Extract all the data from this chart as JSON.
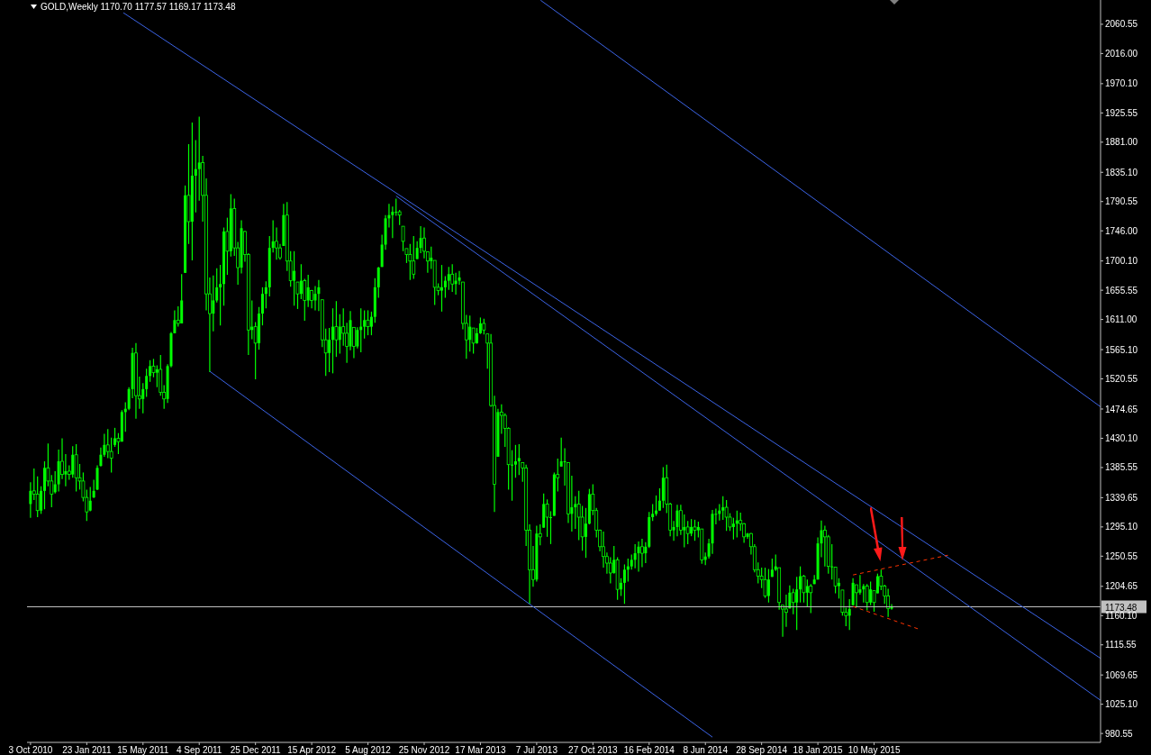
{
  "chart_data": {
    "type": "candlestick",
    "title": "GOLD,Weekly 1170.70 1177.57 1169.17 1173.48",
    "color": "#00ff00",
    "x": [
      "2010-10-03",
      "2010-10-10",
      "2010-10-17",
      "2010-10-24",
      "2010-10-31",
      "2010-11-07",
      "2010-11-14",
      "2010-11-21",
      "2010-11-28",
      "2010-12-05",
      "2010-12-12",
      "2010-12-19",
      "2010-12-26",
      "2011-01-02",
      "2011-01-09",
      "2011-01-16",
      "2011-01-23",
      "2011-01-30",
      "2011-02-06",
      "2011-02-13",
      "2011-02-20",
      "2011-02-27",
      "2011-03-06",
      "2011-03-13",
      "2011-03-20",
      "2011-03-27",
      "2011-04-03",
      "2011-04-10",
      "2011-04-17",
      "2011-04-24",
      "2011-05-01",
      "2011-05-08",
      "2011-05-15",
      "2011-05-22",
      "2011-05-29",
      "2011-06-05",
      "2011-06-12",
      "2011-06-19",
      "2011-06-26",
      "2011-07-03",
      "2011-07-10",
      "2011-07-17",
      "2011-07-24",
      "2011-07-31",
      "2011-08-07",
      "2011-08-14",
      "2011-08-21",
      "2011-08-28",
      "2011-09-04",
      "2011-09-11",
      "2011-09-18",
      "2011-09-25",
      "2011-10-02",
      "2011-10-09",
      "2011-10-16",
      "2011-10-23",
      "2011-10-30",
      "2011-11-06",
      "2011-11-13",
      "2011-11-20",
      "2011-11-27",
      "2011-12-04",
      "2011-12-11",
      "2011-12-18",
      "2011-12-25",
      "2012-01-01",
      "2012-01-08",
      "2012-01-15",
      "2012-01-22",
      "2012-01-29",
      "2012-02-05",
      "2012-02-12",
      "2012-02-19",
      "2012-02-26",
      "2012-03-04",
      "2012-03-11",
      "2012-03-18",
      "2012-03-25",
      "2012-04-01",
      "2012-04-08",
      "2012-04-15",
      "2012-04-22",
      "2012-04-29",
      "2012-05-06",
      "2012-05-13",
      "2012-05-20",
      "2012-05-27",
      "2012-06-03",
      "2012-06-10",
      "2012-06-17",
      "2012-06-24",
      "2012-07-01",
      "2012-07-08",
      "2012-07-15",
      "2012-07-22",
      "2012-07-29",
      "2012-08-05",
      "2012-08-12",
      "2012-08-19",
      "2012-08-26",
      "2012-09-02",
      "2012-09-09",
      "2012-09-16",
      "2012-09-23",
      "2012-09-30",
      "2012-10-07",
      "2012-10-14",
      "2012-10-21",
      "2012-10-28",
      "2012-11-04",
      "2012-11-11",
      "2012-11-18",
      "2012-11-25",
      "2012-12-02",
      "2012-12-09",
      "2012-12-16",
      "2012-12-23",
      "2012-12-30",
      "2013-01-06",
      "2013-01-13",
      "2013-01-20",
      "2013-01-27",
      "2013-02-03",
      "2013-02-10",
      "2013-02-17",
      "2013-02-24",
      "2013-03-03",
      "2013-03-10",
      "2013-03-17",
      "2013-03-24",
      "2013-03-31",
      "2013-04-07",
      "2013-04-14",
      "2013-04-21",
      "2013-04-28",
      "2013-05-05",
      "2013-05-12",
      "2013-05-19",
      "2013-05-26",
      "2013-06-02",
      "2013-06-09",
      "2013-06-16",
      "2013-06-23",
      "2013-06-30",
      "2013-07-07",
      "2013-07-14",
      "2013-07-21",
      "2013-07-28",
      "2013-08-04",
      "2013-08-11",
      "2013-08-18",
      "2013-08-25",
      "2013-09-01",
      "2013-09-08",
      "2013-09-15",
      "2013-09-22",
      "2013-09-29",
      "2013-10-06",
      "2013-10-13",
      "2013-10-20",
      "2013-10-27",
      "2013-11-03",
      "2013-11-10",
      "2013-11-17",
      "2013-11-24",
      "2013-12-01",
      "2013-12-08",
      "2013-12-15",
      "2013-12-22",
      "2013-12-29",
      "2014-01-05",
      "2014-01-12",
      "2014-01-19",
      "2014-01-26",
      "2014-02-02",
      "2014-02-09",
      "2014-02-16",
      "2014-02-23",
      "2014-03-02",
      "2014-03-09",
      "2014-03-16",
      "2014-03-23",
      "2014-03-30",
      "2014-04-06",
      "2014-04-13",
      "2014-04-20",
      "2014-04-27",
      "2014-05-04",
      "2014-05-11",
      "2014-05-18",
      "2014-05-25",
      "2014-06-01",
      "2014-06-08",
      "2014-06-15",
      "2014-06-22",
      "2014-06-29",
      "2014-07-06",
      "2014-07-13",
      "2014-07-20",
      "2014-07-27",
      "2014-08-03",
      "2014-08-10",
      "2014-08-17",
      "2014-08-24",
      "2014-08-31",
      "2014-09-07",
      "2014-09-14",
      "2014-09-21",
      "2014-09-28",
      "2014-10-05",
      "2014-10-12",
      "2014-10-19",
      "2014-10-26",
      "2014-11-02",
      "2014-11-09",
      "2014-11-16",
      "2014-11-23",
      "2014-11-30",
      "2014-12-07",
      "2014-12-14",
      "2014-12-21",
      "2014-12-28",
      "2015-01-04",
      "2015-01-11",
      "2015-01-18",
      "2015-01-25",
      "2015-02-01",
      "2015-02-08",
      "2015-02-15",
      "2015-02-22",
      "2015-03-01",
      "2015-03-08",
      "2015-03-15",
      "2015-03-22",
      "2015-03-29",
      "2015-04-05",
      "2015-04-12",
      "2015-04-19",
      "2015-04-26",
      "2015-05-03",
      "2015-05-10",
      "2015-05-17",
      "2015-05-24",
      "2015-05-31",
      "2015-06-07",
      "2015-06-14"
    ],
    "ohlc": [
      [
        1330,
        1363,
        1309,
        1350
      ],
      [
        1350,
        1384,
        1336,
        1345
      ],
      [
        1345,
        1372,
        1310,
        1320
      ],
      [
        1320,
        1357,
        1315,
        1350
      ],
      [
        1350,
        1395,
        1322,
        1385
      ],
      [
        1385,
        1422,
        1357,
        1365
      ],
      [
        1365,
        1374,
        1325,
        1345
      ],
      [
        1348,
        1380,
        1346,
        1360
      ],
      [
        1360,
        1413,
        1349,
        1395
      ],
      [
        1395,
        1430,
        1368,
        1375
      ],
      [
        1375,
        1406,
        1357,
        1380
      ],
      [
        1380,
        1389,
        1367,
        1375
      ],
      [
        1375,
        1418,
        1370,
        1405
      ],
      [
        1405,
        1421,
        1349,
        1370
      ],
      [
        1370,
        1391,
        1352,
        1365
      ],
      [
        1365,
        1378,
        1334,
        1340
      ],
      [
        1340,
        1352,
        1304,
        1318
      ],
      [
        1320,
        1356,
        1319,
        1335
      ],
      [
        1340,
        1367,
        1339,
        1350
      ],
      [
        1352,
        1389,
        1351,
        1385
      ],
      [
        1388,
        1416,
        1387,
        1405
      ],
      [
        1405,
        1437,
        1402,
        1420
      ],
      [
        1420,
        1444,
        1400,
        1410
      ],
      [
        1410,
        1431,
        1378,
        1400
      ],
      [
        1420,
        1446,
        1417,
        1430
      ],
      [
        1430,
        1438,
        1406,
        1425
      ],
      [
        1425,
        1473,
        1425,
        1470
      ],
      [
        1470,
        1485,
        1440,
        1475
      ],
      [
        1475,
        1508,
        1473,
        1505
      ],
      [
        1505,
        1568,
        1491,
        1560
      ],
      [
        1560,
        1575,
        1460,
        1495
      ],
      [
        1495,
        1524,
        1475,
        1490
      ],
      [
        1490,
        1514,
        1468,
        1505
      ],
      [
        1505,
        1536,
        1493,
        1525
      ],
      [
        1525,
        1549,
        1516,
        1540
      ],
      [
        1540,
        1551,
        1523,
        1530
      ],
      [
        1530,
        1541,
        1508,
        1535
      ],
      [
        1535,
        1557,
        1495,
        1500
      ],
      [
        1500,
        1511,
        1475,
        1490
      ],
      [
        1490,
        1543,
        1484,
        1540
      ],
      [
        1540,
        1592,
        1538,
        1590
      ],
      [
        1590,
        1625,
        1590,
        1610
      ],
      [
        1610,
        1631,
        1600,
        1605
      ],
      [
        1605,
        1680,
        1605,
        1640
      ],
      [
        1682,
        1815,
        1682,
        1800
      ],
      [
        1800,
        1878,
        1726,
        1760
      ],
      [
        1760,
        1911,
        1701,
        1830
      ],
      [
        1830,
        1884,
        1774,
        1840
      ],
      [
        1840,
        1920,
        1792,
        1850
      ],
      [
        1850,
        1860,
        1760,
        1800
      ],
      [
        1800,
        1826,
        1625,
        1650
      ],
      [
        1650,
        1675,
        1531,
        1620
      ],
      [
        1620,
        1678,
        1593,
        1640
      ],
      [
        1640,
        1689,
        1637,
        1660
      ],
      [
        1660,
        1694,
        1602,
        1665
      ],
      [
        1665,
        1751,
        1632,
        1745
      ],
      [
        1745,
        1766,
        1679,
        1715
      ],
      [
        1715,
        1802,
        1707,
        1780
      ],
      [
        1780,
        1795,
        1708,
        1720
      ],
      [
        1720,
        1729,
        1664,
        1690
      ],
      [
        1690,
        1762,
        1681,
        1750
      ],
      [
        1745,
        1746,
        1699,
        1710
      ],
      [
        1710,
        1712,
        1557,
        1595
      ],
      [
        1595,
        1640,
        1581,
        1600
      ],
      [
        1600,
        1607,
        1520,
        1575
      ],
      [
        1575,
        1630,
        1565,
        1620
      ],
      [
        1620,
        1660,
        1602,
        1650
      ],
      [
        1650,
        1669,
        1628,
        1660
      ],
      [
        1660,
        1738,
        1646,
        1720
      ],
      [
        1720,
        1762,
        1713,
        1730
      ],
      [
        1730,
        1751,
        1702,
        1720
      ],
      [
        1720,
        1726,
        1702,
        1705
      ],
      [
        1723,
        1787,
        1723,
        1770
      ],
      [
        1770,
        1790,
        1685,
        1700
      ],
      [
        1700,
        1715,
        1661,
        1670
      ],
      [
        1670,
        1715,
        1632,
        1685
      ],
      [
        1668,
        1668,
        1627,
        1650
      ],
      [
        1650,
        1695,
        1642,
        1670
      ],
      [
        1670,
        1673,
        1609,
        1640
      ],
      [
        1640,
        1679,
        1630,
        1660
      ],
      [
        1655,
        1656,
        1628,
        1640
      ],
      [
        1640,
        1662,
        1625,
        1650
      ],
      [
        1650,
        1671,
        1624,
        1660
      ],
      [
        1641,
        1641,
        1569,
        1580
      ],
      [
        1580,
        1597,
        1525,
        1560
      ],
      [
        1560,
        1598,
        1531,
        1580
      ],
      [
        1580,
        1628,
        1529,
        1600
      ],
      [
        1600,
        1639,
        1554,
        1580
      ],
      [
        1580,
        1619,
        1559,
        1600
      ],
      [
        1600,
        1628,
        1571,
        1590
      ],
      [
        1590,
        1606,
        1545,
        1570
      ],
      [
        1570,
        1624,
        1564,
        1610
      ],
      [
        1599,
        1599,
        1552,
        1570
      ],
      [
        1570,
        1599,
        1567,
        1595
      ],
      [
        1595,
        1628,
        1561,
        1600
      ],
      [
        1600,
        1625,
        1582,
        1610
      ],
      [
        1610,
        1625,
        1587,
        1600
      ],
      [
        1600,
        1623,
        1587,
        1615
      ],
      [
        1615,
        1674,
        1606,
        1660
      ],
      [
        1660,
        1691,
        1644,
        1690
      ],
      [
        1691,
        1740,
        1691,
        1725
      ],
      [
        1725,
        1770,
        1717,
        1765
      ],
      [
        1765,
        1787,
        1751,
        1770
      ],
      [
        1770,
        1783,
        1735,
        1775
      ],
      [
        1775,
        1795,
        1769,
        1775
      ],
      [
        1775,
        1778,
        1755,
        1770
      ],
      [
        1753,
        1753,
        1715,
        1730
      ],
      [
        1719,
        1719,
        1697,
        1710
      ],
      [
        1710,
        1726,
        1671,
        1700
      ],
      [
        1700,
        1738,
        1673,
        1680
      ],
      [
        1703,
        1730,
        1703,
        1720
      ],
      [
        1720,
        1753,
        1712,
        1735
      ],
      [
        1735,
        1751,
        1704,
        1715
      ],
      [
        1714,
        1714,
        1682,
        1700
      ],
      [
        1700,
        1722,
        1688,
        1705
      ],
      [
        1701,
        1701,
        1633,
        1660
      ],
      [
        1660,
        1666,
        1648,
        1655
      ],
      [
        1655,
        1694,
        1623,
        1660
      ],
      [
        1660,
        1677,
        1644,
        1670
      ],
      [
        1670,
        1691,
        1656,
        1680
      ],
      [
        1680,
        1695,
        1653,
        1665
      ],
      [
        1665,
        1682,
        1649,
        1670
      ],
      [
        1670,
        1685,
        1664,
        1675
      ],
      [
        1668,
        1668,
        1596,
        1605
      ],
      [
        1605,
        1618,
        1551,
        1580
      ],
      [
        1580,
        1617,
        1562,
        1600
      ],
      [
        1598,
        1598,
        1559,
        1575
      ],
      [
        1575,
        1598,
        1574,
        1590
      ],
      [
        1590,
        1614,
        1589,
        1605
      ],
      [
        1605,
        1612,
        1588,
        1595
      ],
      [
        1589,
        1589,
        1536,
        1575
      ],
      [
        1575,
        1589,
        1478,
        1480
      ],
      [
        1480,
        1495,
        1318,
        1360
      ],
      [
        1402,
        1475,
        1402,
        1470
      ],
      [
        1470,
        1482,
        1437,
        1465
      ],
      [
        1465,
        1468,
        1417,
        1445
      ],
      [
        1445,
        1447,
        1352,
        1390
      ],
      [
        1390,
        1412,
        1335,
        1390
      ],
      [
        1390,
        1420,
        1370,
        1395
      ],
      [
        1395,
        1421,
        1374,
        1400
      ],
      [
        1393,
        1393,
        1364,
        1385
      ],
      [
        1385,
        1390,
        1266,
        1290
      ],
      [
        1290,
        1299,
        1178,
        1230
      ],
      [
        1230,
        1266,
        1204,
        1215
      ],
      [
        1215,
        1297,
        1212,
        1285
      ],
      [
        1285,
        1299,
        1267,
        1280
      ],
      [
        1294,
        1346,
        1294,
        1330
      ],
      [
        1330,
        1337,
        1280,
        1310
      ],
      [
        1310,
        1319,
        1269,
        1310
      ],
      [
        1312,
        1378,
        1312,
        1375
      ],
      [
        1375,
        1399,
        1349,
        1370
      ],
      [
        1387,
        1431,
        1387,
        1395
      ],
      [
        1395,
        1415,
        1358,
        1395
      ],
      [
        1393,
        1393,
        1301,
        1315
      ],
      [
        1315,
        1373,
        1288,
        1325
      ],
      [
        1325,
        1342,
        1292,
        1330
      ],
      [
        1330,
        1350,
        1275,
        1310
      ],
      [
        1310,
        1327,
        1259,
        1280
      ],
      [
        1280,
        1324,
        1248,
        1300
      ],
      [
        1300,
        1353,
        1299,
        1345
      ],
      [
        1345,
        1360,
        1313,
        1320
      ],
      [
        1320,
        1324,
        1279,
        1290
      ],
      [
        1290,
        1291,
        1258,
        1265
      ],
      [
        1265,
        1288,
        1233,
        1250
      ],
      [
        1250,
        1256,
        1224,
        1240
      ],
      [
        1240,
        1249,
        1209,
        1225
      ],
      [
        1225,
        1266,
        1224,
        1245
      ],
      [
        1245,
        1249,
        1184,
        1200
      ],
      [
        1200,
        1217,
        1190,
        1210
      ],
      [
        1210,
        1238,
        1178,
        1230
      ],
      [
        1230,
        1247,
        1212,
        1235
      ],
      [
        1235,
        1253,
        1230,
        1245
      ],
      [
        1245,
        1269,
        1232,
        1255
      ],
      [
        1255,
        1273,
        1227,
        1265
      ],
      [
        1265,
        1277,
        1234,
        1255
      ],
      [
        1255,
        1272,
        1240,
        1265
      ],
      [
        1265,
        1318,
        1263,
        1310
      ],
      [
        1310,
        1330,
        1304,
        1315
      ],
      [
        1315,
        1343,
        1312,
        1320
      ],
      [
        1320,
        1354,
        1320,
        1335
      ],
      [
        1335,
        1386,
        1324,
        1370
      ],
      [
        1370,
        1390,
        1316,
        1330
      ],
      [
        1330,
        1332,
        1281,
        1290
      ],
      [
        1290,
        1304,
        1274,
        1295
      ],
      [
        1295,
        1329,
        1281,
        1320
      ],
      [
        1320,
        1329,
        1283,
        1290
      ],
      [
        1290,
        1314,
        1264,
        1295
      ],
      [
        1295,
        1304,
        1269,
        1285
      ],
      [
        1285,
        1307,
        1281,
        1295
      ],
      [
        1295,
        1306,
        1274,
        1290
      ],
      [
        1290,
        1303,
        1279,
        1295
      ],
      [
        1292,
        1292,
        1239,
        1245
      ],
      [
        1245,
        1256,
        1237,
        1250
      ],
      [
        1250,
        1277,
        1247,
        1270
      ],
      [
        1270,
        1321,
        1254,
        1315
      ],
      [
        1315,
        1323,
        1299,
        1315
      ],
      [
        1315,
        1330,
        1305,
        1320
      ],
      [
        1320,
        1342,
        1306,
        1325
      ],
      [
        1325,
        1336,
        1289,
        1310
      ],
      [
        1310,
        1316,
        1289,
        1295
      ],
      [
        1295,
        1309,
        1276,
        1300
      ],
      [
        1300,
        1320,
        1279,
        1305
      ],
      [
        1305,
        1317,
        1289,
        1300
      ],
      [
        1300,
        1301,
        1271,
        1280
      ],
      [
        1280,
        1286,
        1277,
        1285
      ],
      [
        1285,
        1286,
        1253,
        1265
      ],
      [
        1265,
        1269,
        1226,
        1230
      ],
      [
        1230,
        1241,
        1209,
        1220
      ],
      [
        1220,
        1233,
        1202,
        1215
      ],
      [
        1215,
        1233,
        1187,
        1190
      ],
      [
        1190,
        1231,
        1180,
        1215
      ],
      [
        1219,
        1247,
        1219,
        1230
      ],
      [
        1230,
        1253,
        1228,
        1235
      ],
      [
        1233,
        1233,
        1169,
        1180
      ],
      [
        1176,
        1176,
        1128,
        1170
      ],
      [
        1170,
        1192,
        1143,
        1165
      ],
      [
        1171,
        1206,
        1171,
        1195
      ],
      [
        1195,
        1201,
        1162,
        1180
      ],
      [
        1180,
        1219,
        1138,
        1200
      ],
      [
        1200,
        1235,
        1180,
        1220
      ],
      [
        1220,
        1222,
        1180,
        1195
      ],
      [
        1195,
        1215,
        1174,
        1205
      ],
      [
        1205,
        1208,
        1164,
        1195
      ],
      [
        1208,
        1222,
        1208,
        1215
      ],
      [
        1215,
        1279,
        1215,
        1270
      ],
      [
        1270,
        1305,
        1249,
        1290
      ],
      [
        1290,
        1297,
        1235,
        1280
      ],
      [
        1280,
        1283,
        1224,
        1235
      ],
      [
        1235,
        1269,
        1215,
        1235
      ],
      [
        1234,
        1234,
        1194,
        1205
      ],
      [
        1205,
        1217,
        1186,
        1210
      ],
      [
        1199,
        1199,
        1160,
        1165
      ],
      [
        1165,
        1172,
        1144,
        1160
      ],
      [
        1160,
        1185,
        1138,
        1170
      ],
      [
        1176,
        1217,
        1176,
        1210
      ],
      [
        1207,
        1207,
        1174,
        1195
      ],
      [
        1195,
        1222,
        1192,
        1200
      ],
      [
        1200,
        1208,
        1180,
        1205
      ],
      [
        1205,
        1208,
        1168,
        1180
      ],
      [
        1180,
        1212,
        1176,
        1200
      ],
      [
        1198,
        1198,
        1166,
        1180
      ],
      [
        1194,
        1224,
        1194,
        1220
      ],
      [
        1220,
        1230,
        1199,
        1205
      ],
      [
        1205,
        1207,
        1178,
        1190
      ],
      [
        1190,
        1201,
        1158,
        1171
      ],
      [
        1170.7,
        1177.57,
        1169.17,
        1173.48
      ]
    ],
    "series": [
      {
        "type": "line",
        "color": "#3c64e6",
        "x": [
          "2011-04-06",
          "2016-08-03"
        ],
        "values": [
          2078,
          1095
        ]
      },
      {
        "type": "line",
        "color": "#3c64e6",
        "x": [
          "2012-09-30",
          "2016-08-03"
        ],
        "values": [
          1799,
          1031
        ]
      },
      {
        "type": "line",
        "color": "#3c64e6",
        "x": [
          "2013-07-15",
          "2016-08-03"
        ],
        "values": [
          2097,
          1478
        ]
      },
      {
        "type": "line",
        "color": "#3c64e6",
        "x": [
          "2011-09-25",
          "2014-06-22"
        ],
        "values": [
          1532,
          975
        ]
      },
      {
        "type": "line",
        "color": "#ff3300",
        "line_style": "dashed",
        "x": [
          "2015-03-29",
          "2015-10-04"
        ],
        "values": [
          1222,
          1252
        ]
      },
      {
        "type": "line",
        "color": "#ff3300",
        "line_style": "dashed",
        "x": [
          "2015-03-29",
          "2015-08-09"
        ],
        "values": [
          1174,
          1139
        ]
      }
    ],
    "ref_lines": [
      {
        "axis": "y",
        "value": 1173.48,
        "label": "1173.48",
        "color": "#c0c0c0"
      }
    ],
    "xlim": [
      "2010-09-26",
      "2016-08-03"
    ],
    "xticks": [
      {
        "value": "2010-10-03",
        "label": "3 Oct 2010"
      },
      {
        "value": "2011-01-23",
        "label": "23 Jan 2011"
      },
      {
        "value": "2011-05-15",
        "label": "15 May 2011"
      },
      {
        "value": "2011-09-04",
        "label": "4 Sep 2011"
      },
      {
        "value": "2011-12-25",
        "label": "25 Dec 2011"
      },
      {
        "value": "2012-04-15",
        "label": "15 Apr 2012"
      },
      {
        "value": "2012-08-05",
        "label": "5 Aug 2012"
      },
      {
        "value": "2012-11-25",
        "label": "25 Nov 2012"
      },
      {
        "value": "2013-03-17",
        "label": "17 Mar 2013"
      },
      {
        "value": "2013-07-07",
        "label": "7 Jul 2013"
      },
      {
        "value": "2013-10-27",
        "label": "27 Oct 2013"
      },
      {
        "value": "2014-02-16",
        "label": "16 Feb 2014"
      },
      {
        "value": "2014-06-08",
        "label": "8 Jun 2014"
      },
      {
        "value": "2014-09-28",
        "label": "28 Sep 2014"
      },
      {
        "value": "2015-01-18",
        "label": "18 Jan 2015"
      },
      {
        "value": "2015-05-10",
        "label": "10 May 2015"
      }
    ],
    "ylim": [
      967,
      2097.5
    ],
    "yticks": [
      980.55,
      {
        "value": 1025.1,
        "label": "1025.10"
      },
      1069.65,
      1115.55,
      {
        "value": 1160.1,
        "label": "1160.10"
      },
      1204.65,
      1250.55,
      {
        "value": 1295.1,
        "label": "1295.10"
      },
      1339.65,
      1385.55,
      {
        "value": 1430.1,
        "label": "1430.10"
      },
      1474.65,
      1520.55,
      {
        "value": 1565.1,
        "label": "1565.10"
      },
      {
        "value": 1611,
        "label": "1611.00"
      },
      1655.55,
      {
        "value": 1700.1,
        "label": "1700.10"
      },
      {
        "value": 1746,
        "label": "1746.00"
      },
      1790.55,
      {
        "value": 1835.1,
        "label": "1835.10"
      },
      {
        "value": 1881,
        "label": "1881.00"
      },
      1925.55,
      {
        "value": 1970.1,
        "label": "1970.10"
      },
      {
        "value": 2016,
        "label": "2016.00"
      },
      2060.55
    ],
    "grid": false,
    "legend": false
  }
}
